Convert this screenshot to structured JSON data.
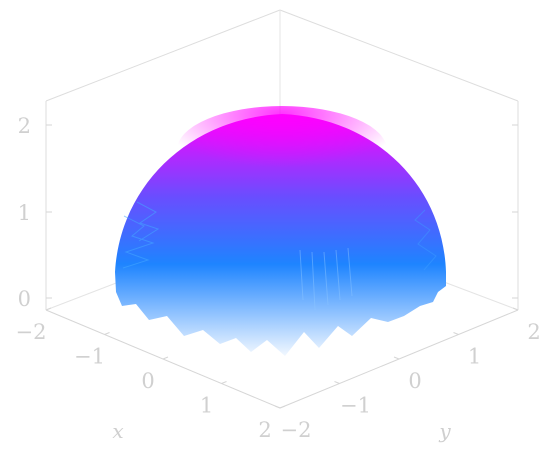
{
  "chart_data": {
    "type": "surface",
    "title": "",
    "xlabel": "x",
    "ylabel": "y",
    "zlabel": "",
    "x_ticks": [
      "−2",
      "−1",
      "0",
      "1",
      "2"
    ],
    "y_ticks": [
      "−2",
      "−1",
      "0",
      "1",
      "2"
    ],
    "z_ticks": [
      "0",
      "1",
      "2"
    ],
    "xlim": [
      -2,
      2
    ],
    "ylim": [
      -2,
      2
    ],
    "zlim": [
      0,
      2
    ],
    "surface": {
      "shape": "hemisphere",
      "radius": 2,
      "equation_form": "z = sqrt(4 - x^2 - y^2)"
    },
    "colormap": {
      "top": "#ff00ff",
      "mid": "#5a56ff",
      "mid_low": "#1e8cff",
      "bottom": "#e8f4ff"
    },
    "grid": false,
    "legend": "none"
  }
}
